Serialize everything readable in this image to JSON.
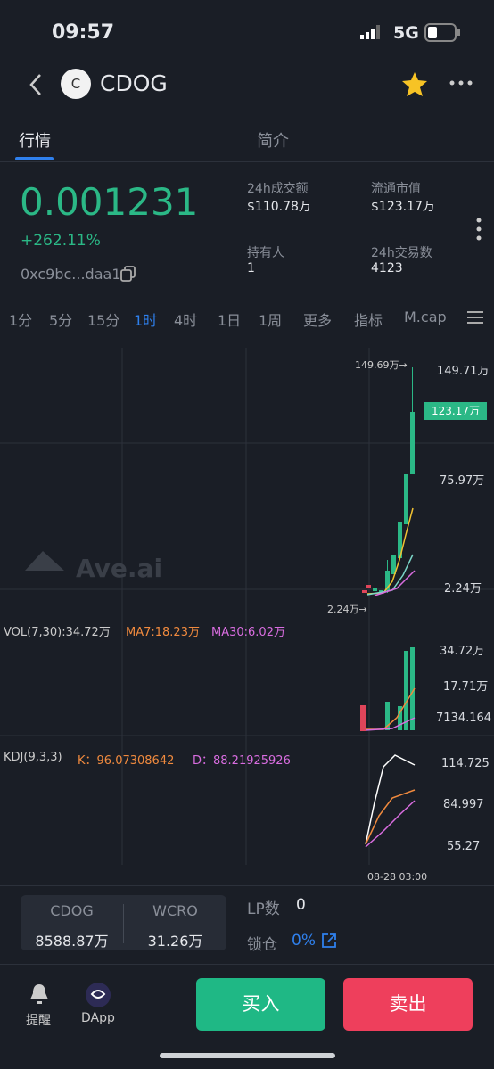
{
  "status_bar": {
    "time": "09:57",
    "network": "5G"
  },
  "header": {
    "avatar": "C",
    "title": "CDOG"
  },
  "tabs": [
    "行情",
    "简介"
  ],
  "price": {
    "value": "0.001231",
    "change": "+262.11%",
    "address": "0xc9bc...daa1"
  },
  "stats": [
    {
      "label": "24h成交额",
      "value": "$110.78万"
    },
    {
      "label": "流通市值",
      "value": "$123.17万"
    },
    {
      "label": "持有人",
      "value": "1"
    },
    {
      "label": "24h交易数",
      "value": "4123"
    }
  ],
  "intervals": [
    "1分",
    "5分",
    "15分",
    "1时",
    "4时",
    "1日",
    "1周",
    "更多",
    "指标",
    "M.cap"
  ],
  "chart": {
    "high_marker": "149.69万→",
    "low_marker": "2.24万→",
    "current_price": "123.17万",
    "price_axis": [
      "149.71万",
      "75.97万",
      "2.24万"
    ],
    "watermark": "Ave.ai",
    "volume_legend": [
      "VOL(7,30):34.72万",
      "MA7:18.23万",
      "MA30:6.02万"
    ],
    "volume_axis": [
      "34.72万",
      "17.71万",
      "7134.164"
    ],
    "kdj_legend": [
      "KDJ(9,3,3)",
      "K：96.07308642",
      "D：88.21925926"
    ],
    "kdj_axis": [
      "114.725",
      "84.997",
      "55.27"
    ],
    "time_label": "08-28 03:00"
  },
  "pool": {
    "token_a": "CDOG",
    "amount_a": "8588.87万",
    "token_b": "WCRO",
    "amount_b": "31.26万",
    "lp_label": "LP数",
    "lp_value": "0",
    "lock_label": "锁仓",
    "lock_value": "0%"
  },
  "bottom": {
    "alert": "提醒",
    "dapp": "DApp",
    "buy": "买入",
    "sell": "卖出"
  }
}
